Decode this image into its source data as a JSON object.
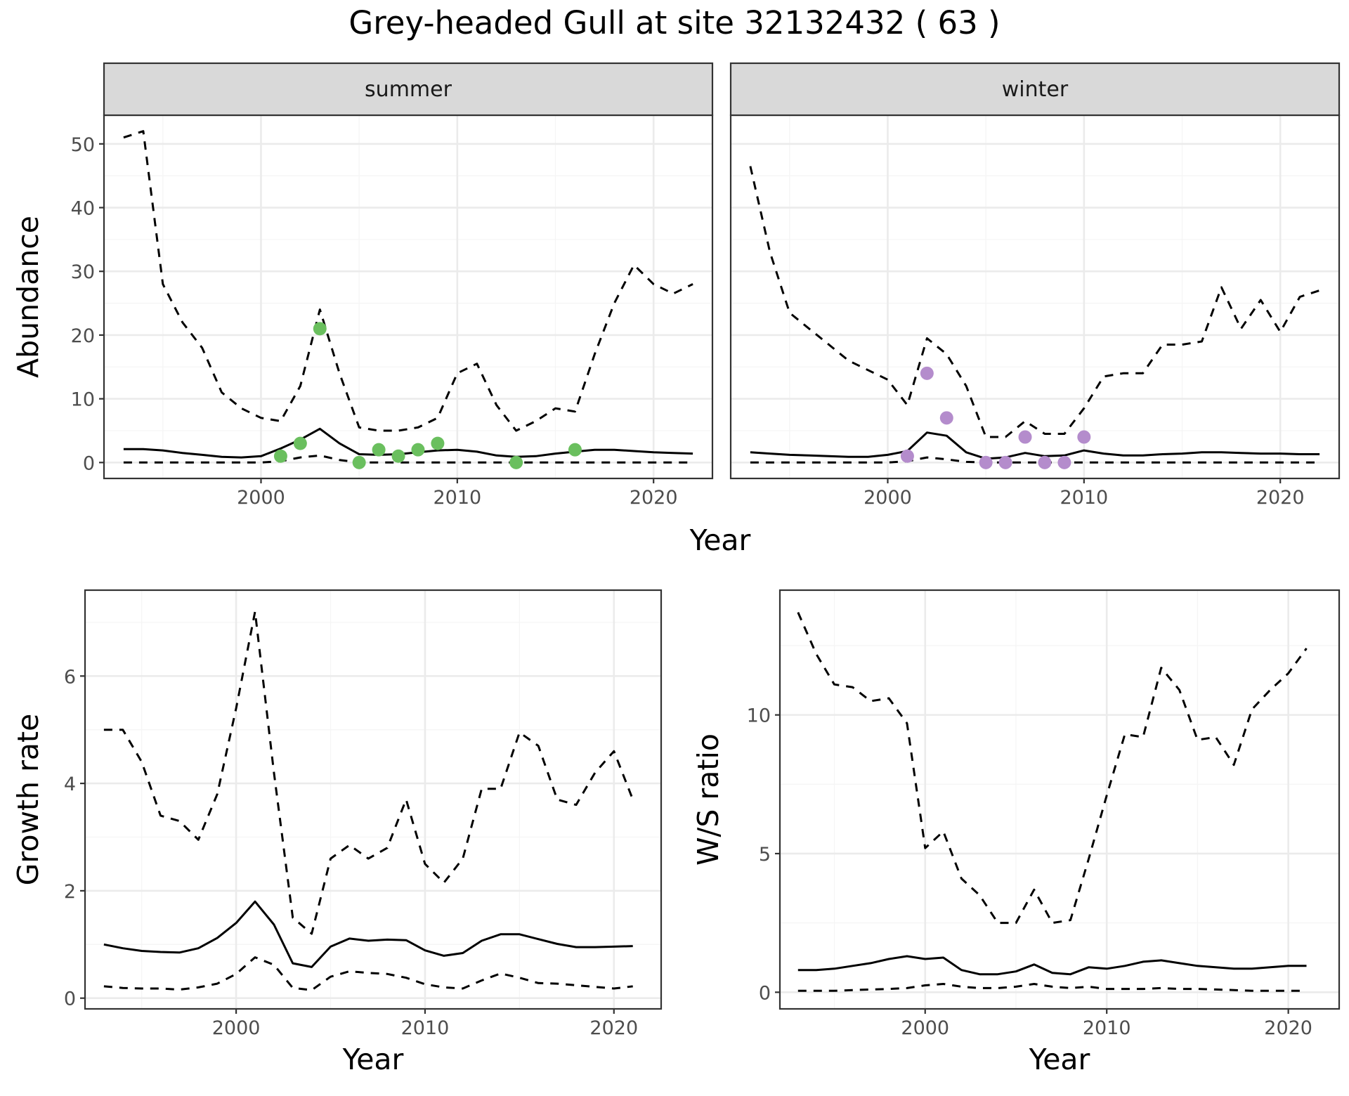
{
  "title": "Grey-headed Gull at site 32132432 ( 63 )",
  "colors": {
    "summer_points": "#6abf5e",
    "winter_points": "#b48ccc",
    "line": "#000000",
    "strip_fill": "#d9d9d9",
    "grid_major": "#ebebeb",
    "grid_minor": "#f5f5f5"
  },
  "chart_data": [
    {
      "id": "summer",
      "type": "line",
      "strip": "summer",
      "xlabel": "",
      "ylabel": "Abundance",
      "xlim": [
        1992,
        2023
      ],
      "ylim": [
        -2.5,
        54.5
      ],
      "x_ticks": [
        "2000",
        "2010",
        "2020"
      ],
      "y_ticks": [
        "0",
        "10",
        "20",
        "30",
        "40",
        "50"
      ],
      "grid": true,
      "series": [
        {
          "style": "dashed",
          "x": [
            1993,
            1994,
            1995,
            1996,
            1997,
            1998,
            1999,
            2000,
            2001,
            2002,
            2003,
            2004,
            2005,
            2006,
            2007,
            2008,
            2009,
            2010,
            2011,
            2012,
            2013,
            2014,
            2015,
            2016,
            2017,
            2018,
            2019,
            2020,
            2021,
            2022
          ],
          "y": [
            51,
            52,
            28,
            22,
            18,
            11,
            8.5,
            7,
            6.5,
            12,
            24,
            14,
            5.5,
            5,
            5,
            5.5,
            7,
            14,
            15.5,
            9,
            5,
            6.5,
            8.5,
            8,
            17,
            25,
            31,
            28,
            26.5,
            28
          ]
        },
        {
          "style": "solid",
          "x": [
            1993,
            1994,
            1995,
            1996,
            1997,
            1998,
            1999,
            2000,
            2001,
            2002,
            2003,
            2004,
            2005,
            2006,
            2007,
            2008,
            2009,
            2010,
            2011,
            2012,
            2013,
            2014,
            2015,
            2016,
            2017,
            2018,
            2019,
            2020,
            2021,
            2022
          ],
          "y": [
            2.1,
            2.1,
            1.9,
            1.5,
            1.2,
            0.9,
            0.8,
            1,
            2.2,
            3.6,
            5.3,
            3,
            1.3,
            1.2,
            1.3,
            1.6,
            1.9,
            2,
            1.7,
            1.1,
            0.9,
            1,
            1.4,
            1.7,
            2,
            2,
            1.8,
            1.6,
            1.5,
            1.4
          ]
        },
        {
          "style": "dashed",
          "x": [
            1993,
            1994,
            1995,
            1996,
            1997,
            1998,
            1999,
            2000,
            2001,
            2002,
            2003,
            2004,
            2005,
            2006,
            2007,
            2008,
            2009,
            2010,
            2011,
            2012,
            2013,
            2014,
            2015,
            2016,
            2017,
            2018,
            2019,
            2020,
            2021,
            2022
          ],
          "y": [
            0,
            0,
            0,
            0,
            0,
            0,
            0,
            0,
            0.2,
            0.8,
            1.1,
            0.4,
            0,
            0,
            0,
            0,
            0,
            0,
            0,
            0,
            0,
            0,
            0,
            0,
            0,
            0,
            0,
            0,
            0,
            0
          ]
        }
      ],
      "points": {
        "x": [
          2001,
          2002,
          2003,
          2005,
          2006,
          2007,
          2008,
          2009,
          2013,
          2016
        ],
        "y": [
          1,
          3,
          21,
          0,
          2,
          1,
          2,
          3,
          0,
          2
        ]
      }
    },
    {
      "id": "winter",
      "type": "line",
      "strip": "winter",
      "xlabel": "",
      "ylabel": "",
      "xlim": [
        1992,
        2023
      ],
      "ylim": [
        -2.5,
        54.5
      ],
      "x_ticks": [
        "2000",
        "2010",
        "2020"
      ],
      "y_ticks": [],
      "grid": true,
      "series": [
        {
          "style": "dashed",
          "x": [
            1993,
            1994,
            1995,
            1996,
            1997,
            1998,
            1999,
            2000,
            2001,
            2002,
            2003,
            2004,
            2005,
            2006,
            2007,
            2008,
            2009,
            2010,
            2011,
            2012,
            2013,
            2014,
            2015,
            2016,
            2017,
            2018,
            2019,
            2020,
            2021,
            2022
          ],
          "y": [
            46.5,
            33,
            23.5,
            21,
            18.5,
            16,
            14.5,
            13,
            9,
            19.5,
            17,
            12,
            4,
            4,
            6.5,
            4.5,
            4.5,
            8.5,
            13.5,
            14,
            14,
            18.5,
            18.5,
            19,
            27.5,
            21,
            25.5,
            20.5,
            26,
            27
          ]
        },
        {
          "style": "solid",
          "x": [
            1993,
            1994,
            1995,
            1996,
            1997,
            1998,
            1999,
            2000,
            2001,
            2002,
            2003,
            2004,
            2005,
            2006,
            2007,
            2008,
            2009,
            2010,
            2011,
            2012,
            2013,
            2014,
            2015,
            2016,
            2017,
            2018,
            2019,
            2020,
            2021,
            2022
          ],
          "y": [
            1.6,
            1.4,
            1.2,
            1.1,
            1,
            0.9,
            0.9,
            1.2,
            1.8,
            4.7,
            4.2,
            1.6,
            0.6,
            0.8,
            1.5,
            1,
            1.1,
            1.9,
            1.4,
            1.1,
            1.1,
            1.3,
            1.4,
            1.6,
            1.6,
            1.5,
            1.4,
            1.4,
            1.3,
            1.3
          ]
        },
        {
          "style": "dashed",
          "x": [
            1993,
            1994,
            1995,
            1996,
            1997,
            1998,
            1999,
            2000,
            2001,
            2002,
            2003,
            2004,
            2005,
            2006,
            2007,
            2008,
            2009,
            2010,
            2011,
            2012,
            2013,
            2014,
            2015,
            2016,
            2017,
            2018,
            2019,
            2020,
            2021,
            2022
          ],
          "y": [
            0,
            0,
            0,
            0,
            0,
            0,
            0,
            0,
            0.2,
            0.8,
            0.5,
            0.1,
            0,
            0,
            0,
            0,
            0,
            0,
            0,
            0,
            0,
            0,
            0,
            0,
            0,
            0,
            0,
            0,
            0,
            0
          ]
        }
      ],
      "points": {
        "x": [
          2001,
          2002,
          2003,
          2005,
          2006,
          2007,
          2008,
          2009,
          2010
        ],
        "y": [
          1,
          14,
          7,
          0,
          0,
          4,
          0,
          0,
          4
        ]
      }
    },
    {
      "id": "growth",
      "type": "line",
      "xlabel": "Year",
      "ylabel": "Growth rate",
      "xlim": [
        1992,
        2022.5
      ],
      "ylim": [
        -0.2,
        7.6
      ],
      "x_ticks": [
        "2000",
        "2010",
        "2020"
      ],
      "y_ticks": [
        "0",
        "2",
        "4",
        "6"
      ],
      "grid": true,
      "series": [
        {
          "style": "dashed",
          "x": [
            1993,
            1994,
            1995,
            1996,
            1997,
            1998,
            1999,
            2000,
            2001,
            2002,
            2003,
            2004,
            2005,
            2006,
            2007,
            2008,
            2009,
            2010,
            2011,
            2012,
            2013,
            2014,
            2015,
            2016,
            2017,
            2018,
            2019,
            2020,
            2021
          ],
          "y": [
            5,
            5,
            4.4,
            3.4,
            3.3,
            2.95,
            3.8,
            5.4,
            7.2,
            4.2,
            1.5,
            1.2,
            2.6,
            2.85,
            2.6,
            2.8,
            3.7,
            2.5,
            2.15,
            2.6,
            3.9,
            3.9,
            4.95,
            4.7,
            3.7,
            3.6,
            4.2,
            4.6,
            3.7
          ]
        },
        {
          "style": "solid",
          "x": [
            1993,
            1994,
            1995,
            1996,
            1997,
            1998,
            1999,
            2000,
            2001,
            2002,
            2003,
            2004,
            2005,
            2006,
            2007,
            2008,
            2009,
            2010,
            2011,
            2012,
            2013,
            2014,
            2015,
            2016,
            2017,
            2018,
            2019,
            2020,
            2021
          ],
          "y": [
            1,
            0.93,
            0.88,
            0.86,
            0.85,
            0.93,
            1.12,
            1.4,
            1.8,
            1.37,
            0.65,
            0.58,
            0.96,
            1.11,
            1.07,
            1.09,
            1.08,
            0.89,
            0.79,
            0.84,
            1.07,
            1.19,
            1.19,
            1.1,
            1.01,
            0.95,
            0.95,
            0.96,
            0.97
          ]
        },
        {
          "style": "dashed",
          "x": [
            1993,
            1994,
            1995,
            1996,
            1997,
            1998,
            1999,
            2000,
            2001,
            2002,
            2003,
            2004,
            2005,
            2006,
            2007,
            2008,
            2009,
            2010,
            2011,
            2012,
            2013,
            2014,
            2015,
            2016,
            2017,
            2018,
            2019,
            2020,
            2021
          ],
          "y": [
            0.22,
            0.19,
            0.18,
            0.18,
            0.16,
            0.2,
            0.27,
            0.45,
            0.76,
            0.62,
            0.19,
            0.15,
            0.4,
            0.5,
            0.47,
            0.45,
            0.38,
            0.26,
            0.2,
            0.18,
            0.33,
            0.46,
            0.38,
            0.28,
            0.27,
            0.24,
            0.21,
            0.18,
            0.22
          ]
        }
      ]
    },
    {
      "id": "ws",
      "type": "line",
      "xlabel": "Year",
      "ylabel": "W/S ratio",
      "xlim": [
        1992,
        2022.8
      ],
      "ylim": [
        -0.6,
        14.5
      ],
      "x_ticks": [
        "2000",
        "2010",
        "2020"
      ],
      "y_ticks": [
        "0",
        "5",
        "10"
      ],
      "grid": true,
      "series": [
        {
          "style": "dashed",
          "x": [
            1993,
            1994,
            1995,
            1996,
            1997,
            1998,
            1999,
            2000,
            2001,
            2002,
            2003,
            2004,
            2005,
            2006,
            2007,
            2008,
            2009,
            2010,
            2011,
            2012,
            2013,
            2014,
            2015,
            2016,
            2017,
            2018,
            2019,
            2020,
            2021
          ],
          "y": [
            13.7,
            12.2,
            11.1,
            11,
            10.5,
            10.6,
            9.7,
            5.2,
            5.8,
            4.1,
            3.5,
            2.5,
            2.5,
            3.7,
            2.5,
            2.6,
            4.8,
            7.1,
            9.3,
            9.2,
            11.7,
            10.9,
            9.1,
            9.2,
            8.2,
            10.2,
            10.9,
            11.5,
            12.4
          ]
        },
        {
          "style": "solid",
          "x": [
            1993,
            1994,
            1995,
            1996,
            1997,
            1998,
            1999,
            2000,
            2001,
            2002,
            2003,
            2004,
            2005,
            2006,
            2007,
            2008,
            2009,
            2010,
            2011,
            2012,
            2013,
            2014,
            2015,
            2016,
            2017,
            2018,
            2019,
            2020,
            2021
          ],
          "y": [
            0.8,
            0.8,
            0.85,
            0.95,
            1.05,
            1.2,
            1.3,
            1.2,
            1.25,
            0.8,
            0.65,
            0.65,
            0.75,
            1,
            0.7,
            0.65,
            0.9,
            0.85,
            0.95,
            1.1,
            1.15,
            1.05,
            0.95,
            0.9,
            0.85,
            0.85,
            0.9,
            0.95,
            0.95
          ]
        },
        {
          "style": "dashed",
          "x": [
            1993,
            1994,
            1995,
            1996,
            1997,
            1998,
            1999,
            2000,
            2001,
            2002,
            2003,
            2004,
            2005,
            2006,
            2007,
            2008,
            2009,
            2010,
            2011,
            2012,
            2013,
            2014,
            2015,
            2016,
            2017,
            2018,
            2019,
            2020,
            2021
          ],
          "y": [
            0.05,
            0.05,
            0.05,
            0.08,
            0.1,
            0.12,
            0.15,
            0.25,
            0.3,
            0.2,
            0.15,
            0.15,
            0.2,
            0.3,
            0.2,
            0.15,
            0.2,
            0.12,
            0.12,
            0.12,
            0.15,
            0.12,
            0.12,
            0.1,
            0.08,
            0.05,
            0.05,
            0.05,
            0.05
          ]
        }
      ]
    }
  ]
}
